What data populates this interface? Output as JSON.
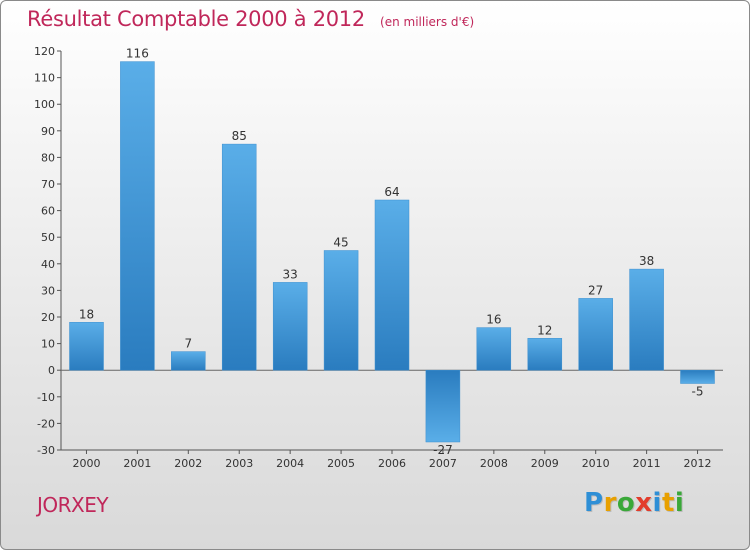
{
  "header": {
    "title": "Résultat Comptable 2000 à 2012",
    "subtitle": "(en milliers d'€)"
  },
  "footer": {
    "commune": "JORXEY",
    "logo_letters": [
      "P",
      "r",
      "o",
      "x",
      "i",
      "t",
      "i"
    ],
    "logo_colors": [
      "#2e8fd6",
      "#e8a000",
      "#3aa839",
      "#e23c2c",
      "#2e8fd6",
      "#e8a000",
      "#3aa839"
    ]
  },
  "chart_data": {
    "type": "bar",
    "title": "Résultat Comptable 2000 à 2012",
    "subtitle": "(en milliers d'€)",
    "xlabel": "",
    "ylabel": "",
    "categories": [
      "2000",
      "2001",
      "2002",
      "2003",
      "2004",
      "2005",
      "2006",
      "2007",
      "2008",
      "2009",
      "2010",
      "2011",
      "2012"
    ],
    "values": [
      18,
      116,
      7,
      85,
      33,
      45,
      64,
      -27,
      16,
      12,
      27,
      38,
      -5
    ],
    "data_labels": [
      "18",
      "116",
      "7",
      "85",
      "33",
      "45",
      "64",
      "-27",
      "16",
      "12",
      "27",
      "38",
      "-5"
    ],
    "ylim": [
      -30,
      120
    ],
    "yticks": [
      120,
      110,
      100,
      90,
      80,
      70,
      60,
      50,
      40,
      30,
      20,
      10,
      0,
      -10,
      -20,
      -30
    ],
    "ytick_labels": [
      "120",
      "110",
      "100",
      "90",
      "80",
      "70",
      "60",
      "50",
      "40",
      "30",
      "20",
      "10",
      "0",
      "-10",
      "-20",
      "-30"
    ],
    "grid": false,
    "bar_color_top": "#5aaee8",
    "bar_color_bottom": "#2a7cbf"
  }
}
